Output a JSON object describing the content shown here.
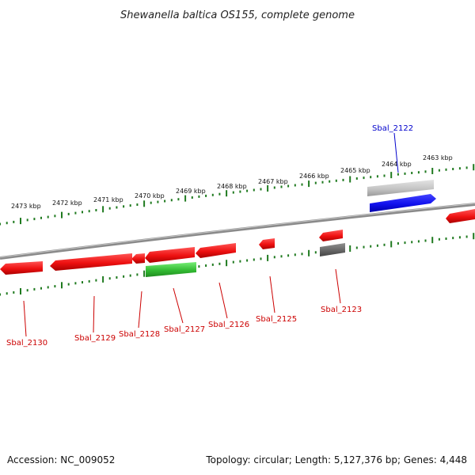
{
  "title": "Shewanella baltica OS155, complete genome",
  "colors": {
    "background": "#ffffff",
    "backbone": "#808080",
    "tick": "#1f7a1f",
    "gene_red": "#ee1111",
    "gene_green": "#33bb33",
    "gene_blue": "#1111ee",
    "gene_grey_light": "#c4c4c4",
    "gene_grey_dark": "#666666",
    "label_red": "#cc0000",
    "label_blue": "#0000cc"
  },
  "scale_labels": [
    "2473 kbp",
    "2472 kbp",
    "2471 kbp",
    "2470 kbp",
    "2469 kbp",
    "2468 kbp",
    "2467 kbp",
    "2466 kbp",
    "2465 kbp",
    "2464 kbp",
    "2463 kbp"
  ],
  "gene_labels": [
    {
      "id": "Sbal_2122",
      "color": "blue"
    },
    {
      "id": "Sbal_2123",
      "color": "red"
    },
    {
      "id": "Sbal_2125",
      "color": "red"
    },
    {
      "id": "Sbal_2126",
      "color": "red"
    },
    {
      "id": "Sbal_2127",
      "color": "red"
    },
    {
      "id": "Sbal_2128",
      "color": "red"
    },
    {
      "id": "Sbal_2129",
      "color": "red"
    },
    {
      "id": "Sbal_2130",
      "color": "red"
    }
  ],
  "footer": {
    "accession": "Accession: NC_009052",
    "summary": "Topology: circular; Length: 5,127,376 bp; Genes: 4,448"
  }
}
